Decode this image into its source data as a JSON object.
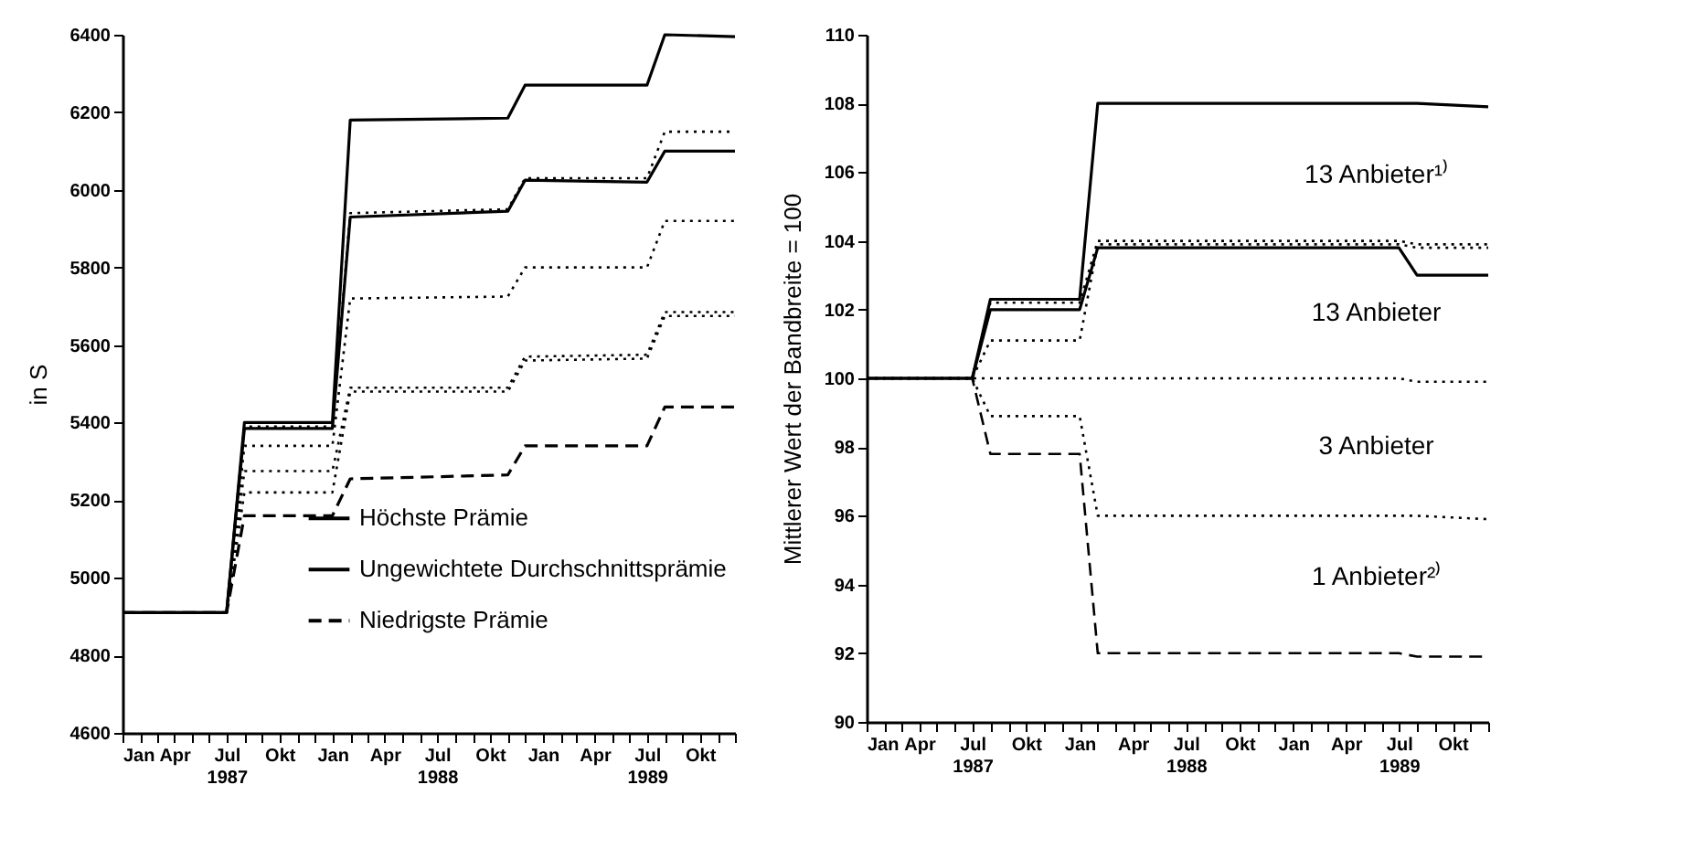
{
  "chart_data": [
    {
      "type": "line",
      "ylabel": "in S",
      "legend": "bottom",
      "x": [
        "1987-01",
        "1987-07",
        "1987-08",
        "1988-01",
        "1988-02",
        "1988-11",
        "1988-12",
        "1989-07",
        "1989-08",
        "1989-12"
      ],
      "xlim": [
        "1987-01",
        "1989-12"
      ],
      "xticks": [
        {
          "value": "1987-01",
          "label": "Jan"
        },
        {
          "value": "1987-02",
          "label": null
        },
        {
          "value": "1987-03",
          "label": null
        },
        {
          "value": "1987-04",
          "label": "Apr"
        },
        {
          "value": "1987-05",
          "label": null
        },
        {
          "value": "1987-06",
          "label": null
        },
        {
          "value": "1987-07",
          "label": "Jul\n1987"
        },
        {
          "value": "1987-08",
          "label": null
        },
        {
          "value": "1987-09",
          "label": null
        },
        {
          "value": "1987-10",
          "label": "Okt"
        },
        {
          "value": "1987-11",
          "label": null
        },
        {
          "value": "1987-12",
          "label": null
        },
        {
          "value": "1988-01",
          "label": "Jan"
        },
        {
          "value": "1988-02",
          "label": null
        },
        {
          "value": "1988-03",
          "label": null
        },
        {
          "value": "1988-04",
          "label": "Apr"
        },
        {
          "value": "1988-05",
          "label": null
        },
        {
          "value": "1988-06",
          "label": null
        },
        {
          "value": "1988-07",
          "label": "Jul\n1988"
        },
        {
          "value": "1988-08",
          "label": null
        },
        {
          "value": "1988-09",
          "label": null
        },
        {
          "value": "1988-10",
          "label": "Okt"
        },
        {
          "value": "1988-11",
          "label": null
        },
        {
          "value": "1988-12",
          "label": null
        },
        {
          "value": "1989-01",
          "label": "Jan"
        },
        {
          "value": "1989-02",
          "label": null
        },
        {
          "value": "1989-03",
          "label": null
        },
        {
          "value": "1989-04",
          "label": "Apr"
        },
        {
          "value": "1989-05",
          "label": null
        },
        {
          "value": "1989-06",
          "label": null
        },
        {
          "value": "1989-07",
          "label": "Jul\n1989"
        },
        {
          "value": "1989-08",
          "label": null
        },
        {
          "value": "1989-09",
          "label": null
        },
        {
          "value": "1989-10",
          "label": "Okt"
        },
        {
          "value": "1989-11",
          "label": null
        },
        {
          "value": "1989-12",
          "label": null
        }
      ],
      "ylim": [
        4600,
        6400
      ],
      "yticks": [
        4600,
        4800,
        5000,
        5200,
        5400,
        5600,
        5800,
        6000,
        6200,
        6400
      ],
      "series": [
        {
          "name": "Höchste Prämie",
          "color": "#000000",
          "line_style": "solid",
          "values": [
            4910,
            4910,
            5400,
            5400,
            6180,
            6185,
            6270,
            6270,
            6400,
            6395
          ]
        },
        {
          "name": "Ungewichtete Durchschnittsprämie",
          "color": "#000000",
          "line_style": "solid",
          "values": [
            4910,
            4910,
            5385,
            5385,
            5930,
            5945,
            6025,
            6020,
            6100,
            6100
          ]
        },
        {
          "name": "Niedrigste Prämie",
          "color": "#000000",
          "line_style": "dashed",
          "values": [
            4910,
            4910,
            5160,
            5160,
            5255,
            5265,
            5340,
            5340,
            5440,
            5440
          ]
        },
        {
          "color": "#000000",
          "line_style": "dotted",
          "values": [
            4910,
            4910,
            5390,
            5390,
            5940,
            5950,
            6030,
            6030,
            6150,
            6150
          ]
        },
        {
          "color": "#000000",
          "line_style": "dotted",
          "values": [
            4910,
            4910,
            5340,
            5340,
            5720,
            5725,
            5800,
            5800,
            5920,
            5920
          ]
        },
        {
          "color": "#000000",
          "line_style": "dotted",
          "values": [
            4910,
            4910,
            5275,
            5275,
            5490,
            5490,
            5570,
            5575,
            5685,
            5685
          ]
        },
        {
          "color": "#000000",
          "line_style": "dotted",
          "values": [
            4910,
            4910,
            5220,
            5220,
            5480,
            5480,
            5560,
            5565,
            5675,
            5675
          ]
        }
      ]
    },
    {
      "type": "line",
      "ylabel": "Mittlerer Wert der Bandbreite = 100",
      "x": [
        "1987-01",
        "1987-07",
        "1987-08",
        "1988-01",
        "1988-02",
        "1989-07",
        "1989-08",
        "1989-12"
      ],
      "xlim": [
        "1987-01",
        "1989-12"
      ],
      "xticks": [
        {
          "value": "1987-01",
          "label": "Jan"
        },
        {
          "value": "1987-02",
          "label": null
        },
        {
          "value": "1987-03",
          "label": null
        },
        {
          "value": "1987-04",
          "label": "Apr"
        },
        {
          "value": "1987-05",
          "label": null
        },
        {
          "value": "1987-06",
          "label": null
        },
        {
          "value": "1987-07",
          "label": "Jul\n1987"
        },
        {
          "value": "1987-08",
          "label": null
        },
        {
          "value": "1987-09",
          "label": null
        },
        {
          "value": "1987-10",
          "label": "Okt"
        },
        {
          "value": "1987-11",
          "label": null
        },
        {
          "value": "1987-12",
          "label": null
        },
        {
          "value": "1988-01",
          "label": "Jan"
        },
        {
          "value": "1988-02",
          "label": null
        },
        {
          "value": "1988-03",
          "label": null
        },
        {
          "value": "1988-04",
          "label": "Apr"
        },
        {
          "value": "1988-05",
          "label": null
        },
        {
          "value": "1988-06",
          "label": null
        },
        {
          "value": "1988-07",
          "label": "Jul\n1988"
        },
        {
          "value": "1988-08",
          "label": null
        },
        {
          "value": "1988-09",
          "label": null
        },
        {
          "value": "1988-10",
          "label": "Okt"
        },
        {
          "value": "1988-11",
          "label": null
        },
        {
          "value": "1988-12",
          "label": null
        },
        {
          "value": "1989-01",
          "label": "Jan"
        },
        {
          "value": "1989-02",
          "label": null
        },
        {
          "value": "1989-03",
          "label": null
        },
        {
          "value": "1989-04",
          "label": "Apr"
        },
        {
          "value": "1989-05",
          "label": null
        },
        {
          "value": "1989-06",
          "label": null
        },
        {
          "value": "1989-07",
          "label": "Jul\n1989"
        },
        {
          "value": "1989-08",
          "label": null
        },
        {
          "value": "1989-09",
          "label": null
        },
        {
          "value": "1989-10",
          "label": "Okt"
        },
        {
          "value": "1989-11",
          "label": null
        },
        {
          "value": "1989-12",
          "label": null
        }
      ],
      "ylim": [
        90,
        110
      ],
      "yticks": [
        90,
        92,
        94,
        96,
        98,
        100,
        102,
        104,
        106,
        108,
        110
      ],
      "annotations": [
        "13 Anbieter¹⁾",
        "13 Anbieter",
        "3 Anbieter",
        "1 Anbieter²⁾"
      ],
      "series": [
        {
          "color": "#000000",
          "line_style": "solid",
          "values": [
            100,
            100,
            102.3,
            102.3,
            108,
            108,
            108,
            107.9
          ]
        },
        {
          "color": "#000000",
          "line_style": "dotted",
          "values": [
            100,
            100,
            102.2,
            102.2,
            104,
            104,
            103.9,
            103.9
          ]
        },
        {
          "color": "#000000",
          "line_style": "solid",
          "values": [
            100,
            100,
            102,
            102,
            103.8,
            103.8,
            103,
            103
          ]
        },
        {
          "color": "#000000",
          "line_style": "dotted",
          "values": [
            100,
            100,
            101.1,
            101.1,
            103.9,
            103.9,
            103.8,
            103.8
          ]
        },
        {
          "color": "#000000",
          "line_style": "dotted",
          "values": [
            100,
            100,
            100,
            100,
            100,
            100,
            99.9,
            99.9
          ]
        },
        {
          "color": "#000000",
          "line_style": "dotted",
          "values": [
            100,
            100,
            98.9,
            98.9,
            96,
            96,
            96,
            95.9
          ]
        },
        {
          "color": "#000000",
          "line_style": "dashed",
          "values": [
            100,
            100,
            97.8,
            97.8,
            92,
            92,
            91.9,
            91.9
          ]
        }
      ]
    }
  ]
}
